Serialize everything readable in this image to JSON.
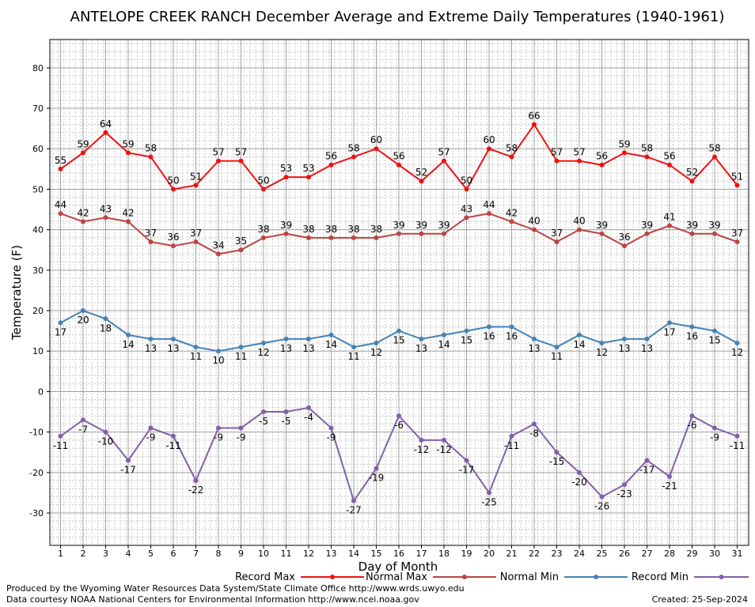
{
  "chart_data": {
    "type": "line",
    "title": "ANTELOPE CREEK RANCH December Average and Extreme Daily Temperatures (1940-1961)",
    "xlabel": "Day of Month",
    "ylabel": "Temperature (F)",
    "ylim": [
      -38,
      87
    ],
    "yticks": [
      -30,
      -20,
      -10,
      0,
      10,
      20,
      30,
      40,
      50,
      60,
      70,
      80
    ],
    "grid": true,
    "legend_position": "bottom",
    "x": [
      1,
      2,
      3,
      4,
      5,
      6,
      7,
      8,
      9,
      10,
      11,
      12,
      13,
      14,
      15,
      16,
      17,
      18,
      19,
      20,
      21,
      22,
      23,
      24,
      25,
      26,
      27,
      28,
      29,
      30,
      31
    ],
    "series": [
      {
        "name": "Record Max",
        "color": "#ee1111",
        "label_pos": "above",
        "values": [
          55,
          59,
          64,
          59,
          58,
          50,
          51,
          57,
          57,
          50,
          53,
          53,
          56,
          58,
          60,
          56,
          52,
          57,
          50,
          60,
          58,
          66,
          57,
          57,
          56,
          59,
          58,
          56,
          52,
          58,
          51
        ]
      },
      {
        "name": "Normal Max",
        "color": "#bb4444",
        "label_pos": "above",
        "values": [
          44,
          42,
          43,
          42,
          37,
          36,
          37,
          34,
          35,
          38,
          39,
          38,
          38,
          38,
          38,
          39,
          39,
          39,
          43,
          44,
          42,
          40,
          37,
          40,
          39,
          36,
          39,
          41,
          39,
          39,
          37
        ]
      },
      {
        "name": "Normal Min",
        "color": "#4682b4",
        "label_pos": "below",
        "values": [
          17,
          20,
          18,
          14,
          13,
          13,
          11,
          10,
          11,
          12,
          13,
          13,
          14,
          11,
          12,
          15,
          13,
          14,
          15,
          16,
          16,
          13,
          11,
          14,
          12,
          13,
          13,
          17,
          16,
          15,
          12
        ]
      },
      {
        "name": "Record Min",
        "color": "#8060a8",
        "label_pos": "below",
        "values": [
          -11,
          -7,
          -10,
          -17,
          -9,
          -11,
          -22,
          -9,
          -9,
          -5,
          -5,
          -4,
          -9,
          -27,
          -19,
          -6,
          -12,
          -12,
          -17,
          -25,
          -11,
          -8,
          -15,
          -20,
          -26,
          -23,
          -17,
          -21,
          -6,
          -9,
          -11
        ]
      }
    ]
  },
  "footer": {
    "produced_by": "Produced by the Wyoming Water Resources Data System/State Climate Office http://www.wrds.uwyo.edu",
    "data_courtesy": "Data courtesy NOAA National Centers for Environmental Information http://www.ncei.noaa.gov",
    "created": "Created:  25-Sep-2024"
  }
}
